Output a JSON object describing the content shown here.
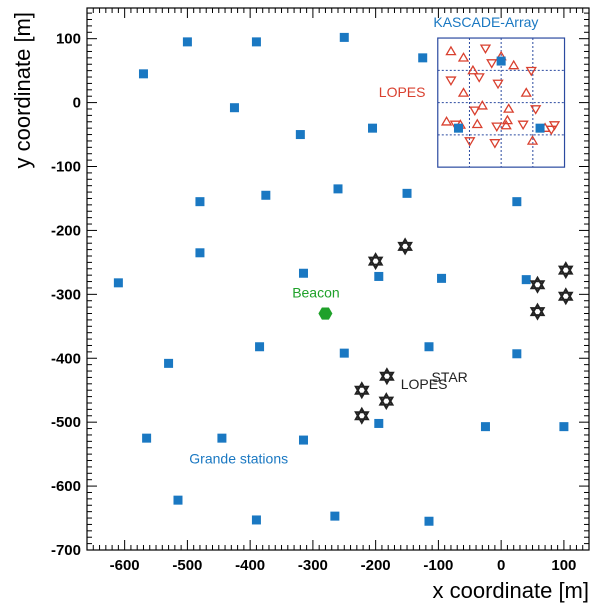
{
  "chart_data": {
    "type": "scatter",
    "xlabel": "x coordinate [m]",
    "ylabel": "y coordinate [m]",
    "xlim": [
      -660,
      140
    ],
    "ylim": [
      -700,
      148
    ],
    "xticks": [
      -600,
      -500,
      -400,
      -300,
      -200,
      -100,
      0,
      100
    ],
    "yticks": [
      100,
      0,
      -100,
      -200,
      -300,
      -400,
      -500,
      -600,
      -700
    ],
    "grid": false,
    "annotations": {
      "kascade": "KASCADE-Array",
      "lopes": "LOPES",
      "beacon": "Beacon",
      "lopesstar_main": "LOPES",
      "lopesstar_sup": "STAR",
      "grande": "Grande stations"
    },
    "series": [
      {
        "name": "Grande stations",
        "marker": "square",
        "color": "#1a78c2",
        "points": [
          [
            -500,
            95
          ],
          [
            -390,
            95
          ],
          [
            -250,
            102
          ],
          [
            -125,
            70
          ],
          [
            -570,
            45
          ],
          [
            -425,
            -8
          ],
          [
            -320,
            -50
          ],
          [
            -205,
            -40
          ],
          [
            -480,
            -155
          ],
          [
            -375,
            -145
          ],
          [
            -260,
            -135
          ],
          [
            -150,
            -142
          ],
          [
            25,
            -155
          ],
          [
            -480,
            -235
          ],
          [
            -610,
            -282
          ],
          [
            -315,
            -267
          ],
          [
            -195,
            -272
          ],
          [
            -95,
            -275
          ],
          [
            40,
            -277
          ],
          [
            -385,
            -382
          ],
          [
            -250,
            -392
          ],
          [
            -115,
            -382
          ],
          [
            25,
            -393
          ],
          [
            -530,
            -408
          ],
          [
            -565,
            -525
          ],
          [
            -445,
            -525
          ],
          [
            -315,
            -528
          ],
          [
            -195,
            -502
          ],
          [
            -25,
            -507
          ],
          [
            100,
            -507
          ],
          [
            -515,
            -622
          ],
          [
            -390,
            -653
          ],
          [
            -265,
            -647
          ],
          [
            -115,
            -655
          ]
        ]
      },
      {
        "name": "LOPES",
        "marker": "triangle",
        "color": "#d9402f",
        "points": [
          [
            -87,
            -30
          ],
          [
            -73,
            -34
          ],
          [
            -60,
            15
          ],
          [
            -42,
            -12
          ],
          [
            -38,
            -34
          ],
          [
            -7,
            -37
          ],
          [
            8,
            -36
          ],
          [
            35,
            -34
          ],
          [
            -65,
            -35
          ],
          [
            -50,
            -60
          ],
          [
            -30,
            -5
          ],
          [
            -10,
            -63
          ],
          [
            12,
            -10
          ],
          [
            55,
            -10
          ],
          [
            70,
            -40
          ],
          [
            85,
            -35
          ],
          [
            -45,
            50
          ],
          [
            -15,
            62
          ],
          [
            0,
            72
          ],
          [
            -5,
            30
          ],
          [
            -60,
            70
          ],
          [
            -25,
            85
          ],
          [
            20,
            58
          ],
          [
            48,
            50
          ],
          [
            50,
            -60
          ],
          [
            80,
            -42
          ],
          [
            -80,
            80
          ],
          [
            -80,
            35
          ],
          [
            40,
            15
          ],
          [
            -35,
            40
          ],
          [
            10,
            -28
          ]
        ]
      },
      {
        "name": "KASCADE-Array",
        "marker": "square",
        "color": "#1a78c2",
        "points": [
          [
            -68,
            -40
          ],
          [
            0,
            65
          ],
          [
            62,
            -40
          ]
        ]
      },
      {
        "name": "LOPES-STAR",
        "marker": "star",
        "color": "#222222",
        "points": [
          [
            -200,
            -248
          ],
          [
            -153,
            -225
          ],
          [
            -222,
            -450
          ],
          [
            -182,
            -428
          ],
          [
            -222,
            -490
          ],
          [
            -183,
            -467
          ],
          [
            58,
            -285
          ],
          [
            103,
            -262
          ],
          [
            58,
            -327
          ],
          [
            103,
            -303
          ]
        ]
      },
      {
        "name": "Beacon",
        "marker": "hexagon",
        "color": "#1fa12a",
        "points": [
          [
            -280,
            -330
          ]
        ]
      }
    ],
    "kascade_box": {
      "x": [
        -101,
        101
      ],
      "y": [
        -101,
        101
      ]
    }
  }
}
